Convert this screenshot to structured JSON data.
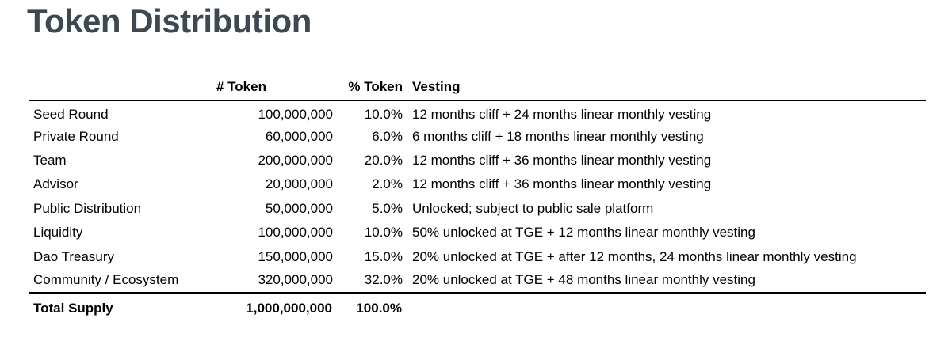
{
  "page": {
    "title": "Token Distribution"
  },
  "colors": {
    "title_text": "#3d4852",
    "table_text": "#000000",
    "rule": "#000000",
    "background": "#ffffff"
  },
  "table": {
    "headers": {
      "label": "",
      "tokens": "# Token",
      "percent": "% Token",
      "vesting": "Vesting"
    },
    "rows": [
      {
        "label": "Seed Round",
        "tokens": "100,000,000",
        "percent": "10.0%",
        "vesting": "12 months cliff + 24 months linear monthly vesting"
      },
      {
        "label": "Private Round",
        "tokens": "60,000,000",
        "percent": "6.0%",
        "vesting": "6 months cliff + 18 months linear monthly vesting"
      },
      {
        "label": "Team",
        "tokens": "200,000,000",
        "percent": "20.0%",
        "vesting": "12 months cliff + 36 months linear monthly vesting"
      },
      {
        "label": "Advisor",
        "tokens": "20,000,000",
        "percent": "2.0%",
        "vesting": "12 months cliff + 36 months linear monthly vesting"
      },
      {
        "label": "Public Distribution",
        "tokens": "50,000,000",
        "percent": "5.0%",
        "vesting": "Unlocked; subject to public sale platform"
      },
      {
        "label": "Liquidity",
        "tokens": "100,000,000",
        "percent": "10.0%",
        "vesting": "50% unlocked at TGE + 12 months linear monthly vesting"
      },
      {
        "label": "Dao Treasury",
        "tokens": "150,000,000",
        "percent": "15.0%",
        "vesting": "20% unlocked at TGE + after 12 months, 24 months linear monthly vesting"
      },
      {
        "label": "Community / Ecosystem",
        "tokens": "320,000,000",
        "percent": "32.0%",
        "vesting": "20% unlocked at TGE + 48 months linear monthly vesting"
      }
    ],
    "total": {
      "label": "Total Supply",
      "tokens": "1,000,000,000",
      "percent": "100.0%",
      "vesting": ""
    }
  }
}
